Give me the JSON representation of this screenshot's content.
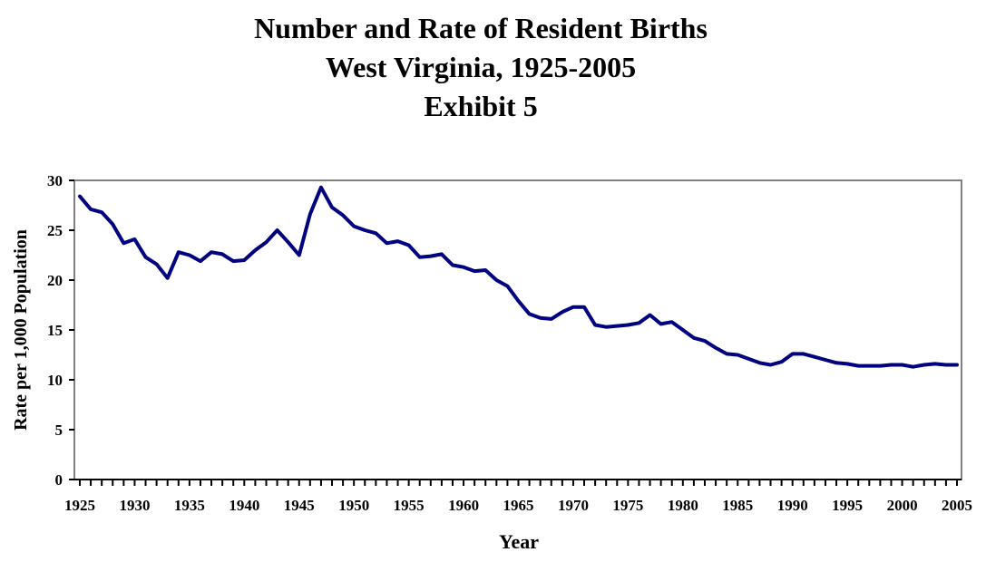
{
  "chart_data": {
    "type": "line",
    "title": [
      "Number and Rate of Resident Births",
      "West Virginia, 1925-2005",
      "Exhibit 5"
    ],
    "xlabel": "Year",
    "ylabel": "Rate per 1,000 Population",
    "xlim": [
      1925,
      2005
    ],
    "ylim": [
      0,
      30
    ],
    "yticks": [
      0,
      5,
      10,
      15,
      20,
      25,
      30
    ],
    "xtick_labels": [
      1925,
      1930,
      1935,
      1940,
      1945,
      1950,
      1955,
      1960,
      1965,
      1970,
      1975,
      1980,
      1985,
      1990,
      1995,
      2000,
      2005
    ],
    "grid": false,
    "legend": "none",
    "line_color": "#000080",
    "series": [
      {
        "x": [
          1925,
          1926,
          1927,
          1928,
          1929,
          1930,
          1931,
          1932,
          1933,
          1934,
          1935,
          1936,
          1937,
          1938,
          1939,
          1940,
          1941,
          1942,
          1943,
          1944,
          1945,
          1946,
          1947,
          1948,
          1949,
          1950,
          1951,
          1952,
          1953,
          1954,
          1955,
          1956,
          1957,
          1958,
          1959,
          1960,
          1961,
          1962,
          1963,
          1964,
          1965,
          1966,
          1967,
          1968,
          1969,
          1970,
          1971,
          1972,
          1973,
          1974,
          1975,
          1976,
          1977,
          1978,
          1979,
          1980,
          1981,
          1982,
          1983,
          1984,
          1985,
          1986,
          1987,
          1988,
          1989,
          1990,
          1991,
          1992,
          1993,
          1994,
          1995,
          1996,
          1997,
          1998,
          1999,
          2000,
          2001,
          2002,
          2003,
          2004,
          2005
        ],
        "values": [
          28.4,
          27.1,
          26.8,
          25.6,
          23.7,
          24.1,
          22.3,
          21.6,
          20.2,
          22.8,
          22.5,
          21.9,
          22.8,
          22.6,
          21.9,
          22.0,
          23.0,
          23.8,
          25.0,
          23.8,
          22.5,
          26.6,
          29.3,
          27.3,
          26.5,
          25.4,
          25.0,
          24.7,
          23.7,
          23.9,
          23.5,
          22.3,
          22.4,
          22.6,
          21.5,
          21.3,
          20.9,
          21.0,
          20.0,
          19.4,
          17.9,
          16.6,
          16.2,
          16.1,
          16.8,
          17.3,
          17.3,
          15.5,
          15.3,
          15.4,
          15.5,
          15.7,
          16.5,
          15.6,
          15.8,
          15.0,
          14.2,
          13.9,
          13.2,
          12.6,
          12.5,
          12.1,
          11.7,
          11.5,
          11.8,
          12.6,
          12.6,
          12.3,
          12.0,
          11.7,
          11.6,
          11.4,
          11.4,
          11.4,
          11.5,
          11.5,
          11.3,
          11.5,
          11.6,
          11.5,
          11.5
        ]
      }
    ]
  }
}
